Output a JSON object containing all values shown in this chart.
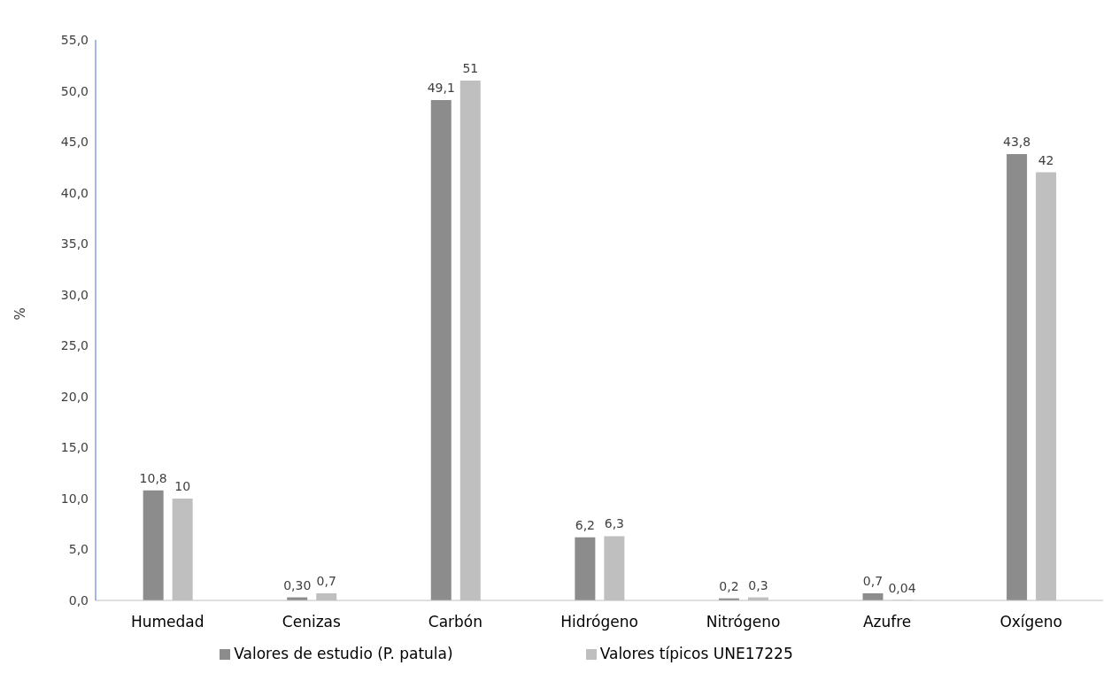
{
  "chart_data": {
    "type": "bar",
    "ylabel": "%",
    "categories": [
      "Humedad",
      "Cenizas",
      "Carbón",
      "Hidrógeno",
      "Nitrógeno",
      "Azufre",
      "Oxígeno"
    ],
    "series": [
      {
        "name": "Valores de estudio (P. patula)",
        "color": "#8c8c8c",
        "values": [
          10.8,
          0.3,
          49.1,
          6.2,
          0.2,
          0.7,
          43.8
        ],
        "value_labels": [
          "10,8",
          "0,30",
          "49,1",
          "6,2",
          "0,2",
          "0,7",
          "43,8"
        ]
      },
      {
        "name": "Valores típicos UNE17225",
        "color": "#bfbfbf",
        "values": [
          10,
          0.7,
          51,
          6.3,
          0.3,
          0.04,
          42
        ],
        "value_labels": [
          "10",
          "0,7",
          "51",
          "6,3",
          "0,3",
          "0,04",
          "42"
        ]
      }
    ],
    "ylim": [
      0,
      55
    ],
    "yticks": [
      {
        "value": 0,
        "label": "0,0"
      },
      {
        "value": 5,
        "label": "5,0"
      },
      {
        "value": 10,
        "label": "10,0"
      },
      {
        "value": 15,
        "label": "15,0"
      },
      {
        "value": 20,
        "label": "20,0"
      },
      {
        "value": 25,
        "label": "25,0"
      },
      {
        "value": 30,
        "label": "30,0"
      },
      {
        "value": 35,
        "label": "35,0"
      },
      {
        "value": 40,
        "label": "40,0"
      },
      {
        "value": 45,
        "label": "45,0"
      },
      {
        "value": 50,
        "label": "50,0"
      },
      {
        "value": 55,
        "label": "55,0"
      }
    ],
    "grid": false,
    "legend": "bottom"
  }
}
